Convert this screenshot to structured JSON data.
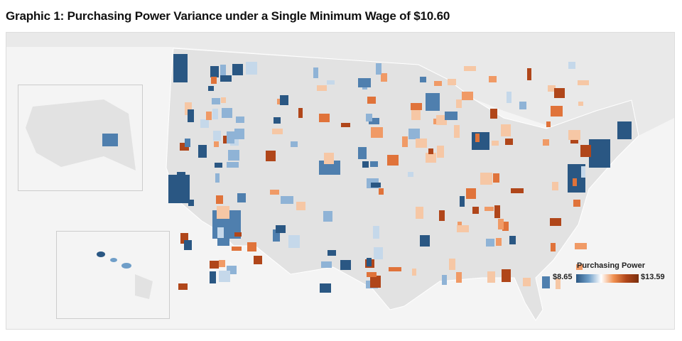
{
  "title": "Graphic 1: Purchasing Power Variance under a Single Minimum Wage of $10.60",
  "legend": {
    "title": "Purchasing Power",
    "min": "$8.65",
    "max": "$13.59",
    "colors": [
      "#2a5783",
      "#ffffff",
      "#7a2e0d"
    ]
  },
  "regions": {
    "mainland": "Contiguous United States",
    "alaska": "Alaska",
    "hawaii": "Hawaii"
  }
}
